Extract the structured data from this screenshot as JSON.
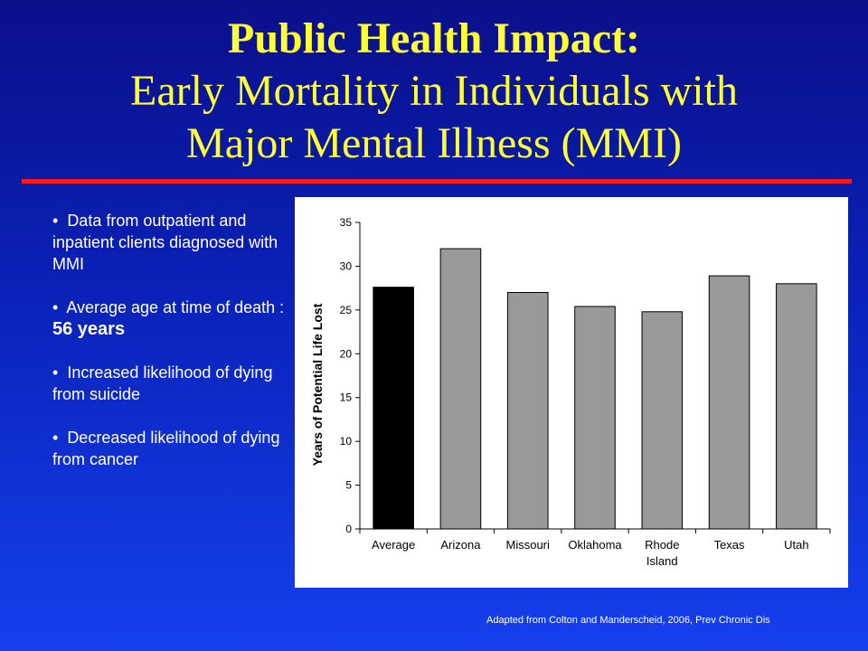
{
  "title": {
    "line1": "Public Health Impact:",
    "line2": "Early Mortality in Individuals with",
    "line3": "Major Mental Illness (MMI)"
  },
  "bullets": {
    "b1": "Data from outpatient and inpatient clients diagnosed with MMI",
    "b2_prefix": "Average age at time of death : ",
    "b2_value": "56 years",
    "b3": "Increased likelihood of dying from suicide",
    "b4": "Decreased likelihood of dying from cancer"
  },
  "source": "Adapted from Colton and Manderscheid, 2006, Prev Chronic Dis",
  "colors": {
    "highlight_bar": "#000000",
    "bar": "#999999",
    "title": "#ffff33",
    "rule": "#ff1a1a"
  },
  "chart_data": {
    "type": "bar",
    "categories": [
      "Average",
      "Arizona",
      "Missouri",
      "Oklahoma",
      "Rhode Island",
      "Texas",
      "Utah"
    ],
    "category_lines": [
      [
        "Average"
      ],
      [
        "Arizona"
      ],
      [
        "Missouri"
      ],
      [
        "Oklahoma"
      ],
      [
        "Rhode",
        "Island"
      ],
      [
        "Texas"
      ],
      [
        "Utah"
      ]
    ],
    "values": [
      27.6,
      32.0,
      27.0,
      25.4,
      24.8,
      28.9,
      28.0
    ],
    "ylabel": "Years of Potential Life Lost",
    "ylim": [
      0,
      35
    ],
    "yticks": [
      0,
      5,
      10,
      15,
      20,
      25,
      30,
      35
    ],
    "grid": false,
    "legend": "none"
  }
}
